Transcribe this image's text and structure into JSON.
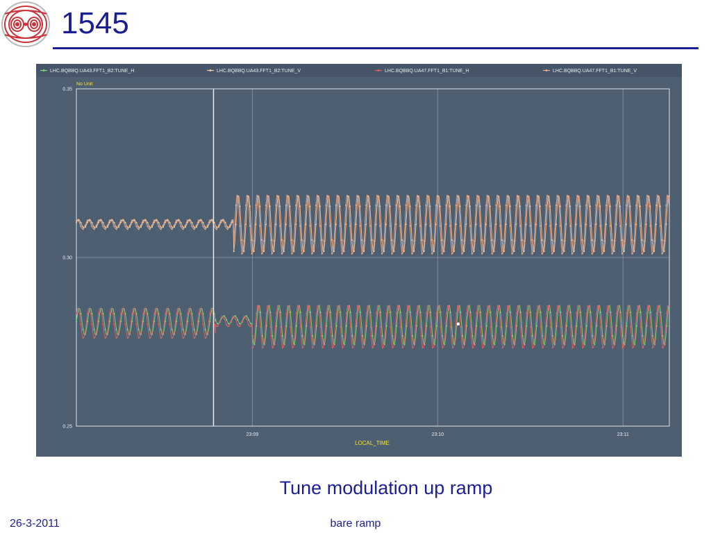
{
  "slide": {
    "title": "1545",
    "caption": "Tune modulation up ramp",
    "footer_date": "26-3-2011",
    "footer_center": "bare ramp",
    "logo_icon": "lhc-magnetic-field-logo-icon",
    "title_color": "#1b1f93"
  },
  "chart_data": {
    "type": "line",
    "unit_label": "No Unit",
    "xlabel": "LOCAL_TIME",
    "ylabel": "",
    "ylim": [
      0.25,
      0.35
    ],
    "xlim_minutes": [
      8.05,
      11.25
    ],
    "x_ticks": [
      {
        "value": 9,
        "label": "23:09"
      },
      {
        "value": 10,
        "label": "23:10"
      },
      {
        "value": 11,
        "label": "23:11"
      }
    ],
    "y_ticks": [
      {
        "value": 0.35,
        "label": "0.35"
      },
      {
        "value": 0.3,
        "label": "0.30"
      },
      {
        "value": 0.25,
        "label": "0.25"
      }
    ],
    "cursor_x": 8.79,
    "grid": true,
    "legend_placement": "top",
    "series": [
      {
        "name": "LHC.BQBBQ.UA43.FFT1_B2:TUNE_H",
        "color": "#78d878",
        "segments": [
          {
            "x0": 8.05,
            "x1": 8.8,
            "center": 0.281,
            "amp": 0.004,
            "period": 0.06
          },
          {
            "x0": 8.8,
            "x1": 9.0,
            "center": 0.2815,
            "amp": 0.0012,
            "period": 0.06
          },
          {
            "x0": 9.0,
            "x1": 11.25,
            "center": 0.28,
            "amp": 0.006,
            "period": 0.054
          }
        ]
      },
      {
        "name": "LHC.BQBBQ.UA43.FFT1_B2:TUNE_V",
        "color": "#f0c8a8",
        "segments": [
          {
            "x0": 8.05,
            "x1": 8.9,
            "center": 0.31,
            "amp": 0.0012,
            "period": 0.06
          },
          {
            "x0": 8.9,
            "x1": 11.25,
            "center": 0.31,
            "amp": 0.0085,
            "period": 0.054
          }
        ]
      },
      {
        "name": "LHC.BQBBQ.UA47.FFT1_B1:TUNE_H",
        "color": "#e06060",
        "segments": [
          {
            "x0": 8.05,
            "x1": 8.8,
            "center": 0.2805,
            "amp": 0.0045,
            "period": 0.06
          },
          {
            "x0": 8.8,
            "x1": 9.0,
            "center": 0.281,
            "amp": 0.0015,
            "period": 0.06
          },
          {
            "x0": 9.0,
            "x1": 11.25,
            "center": 0.2795,
            "amp": 0.0065,
            "period": 0.054
          }
        ]
      },
      {
        "name": "LHC.BQBBQ.UA47.FFT1_B1:TUNE_V",
        "color": "#e8a888",
        "segments": [
          {
            "x0": 8.05,
            "x1": 8.9,
            "center": 0.3098,
            "amp": 0.0014,
            "period": 0.06
          },
          {
            "x0": 8.9,
            "x1": 11.25,
            "center": 0.3098,
            "amp": 0.009,
            "period": 0.054
          }
        ]
      }
    ]
  }
}
